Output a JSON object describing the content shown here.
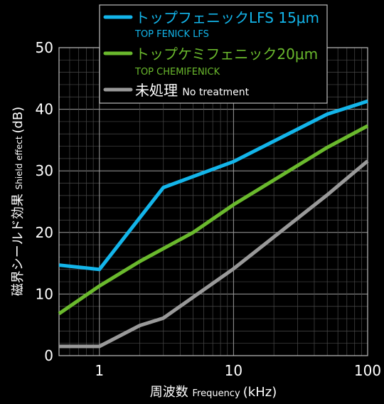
{
  "chart_data": {
    "type": "line",
    "x_scale": "log",
    "xlim": [
      0.5,
      100
    ],
    "ylim": [
      0,
      50
    ],
    "grid": true,
    "legend_position": "top-center",
    "xlabel": {
      "jp": "周波数",
      "en": "Frequency",
      "unit": "(kHz)"
    },
    "ylabel": {
      "jp": "磁界シールド効果",
      "en": "Shield effect",
      "unit": "(dB)"
    },
    "x_tick_labels": [
      {
        "value": 1,
        "label": "1"
      },
      {
        "value": 10,
        "label": "10"
      },
      {
        "value": 100,
        "label": "100"
      }
    ],
    "y_tick_labels": [
      {
        "value": 0,
        "label": "0"
      },
      {
        "value": 10,
        "label": "10"
      },
      {
        "value": 20,
        "label": "20"
      },
      {
        "value": 30,
        "label": "30"
      },
      {
        "value": 40,
        "label": "40"
      },
      {
        "value": 50,
        "label": "50"
      }
    ],
    "series": [
      {
        "name": "トップフェニックLFS 15μm",
        "sub": "TOP FENICK LFS",
        "color": "#13b5ea",
        "points": [
          [
            0.5,
            14.7
          ],
          [
            1,
            14.0
          ],
          [
            3,
            27.3
          ],
          [
            10,
            31.5
          ],
          [
            50,
            39.2
          ],
          [
            100,
            41.3
          ]
        ]
      },
      {
        "name": "トップケミフェニック20μm",
        "sub": "TOP CHEMIFENICK",
        "color": "#6ab92d",
        "points": [
          [
            0.5,
            6.8
          ],
          [
            1,
            11.3
          ],
          [
            2,
            15.3
          ],
          [
            5,
            20.0
          ],
          [
            10,
            24.5
          ],
          [
            50,
            33.8
          ],
          [
            100,
            37.3
          ]
        ]
      },
      {
        "name": "未処理",
        "sub": "No treatment",
        "color": "#999999",
        "points": [
          [
            0.5,
            1.5
          ],
          [
            1,
            1.5
          ],
          [
            2,
            4.9
          ],
          [
            3,
            6.1
          ],
          [
            10,
            14.1
          ],
          [
            50,
            26.1
          ],
          [
            100,
            31.6
          ]
        ]
      }
    ]
  }
}
